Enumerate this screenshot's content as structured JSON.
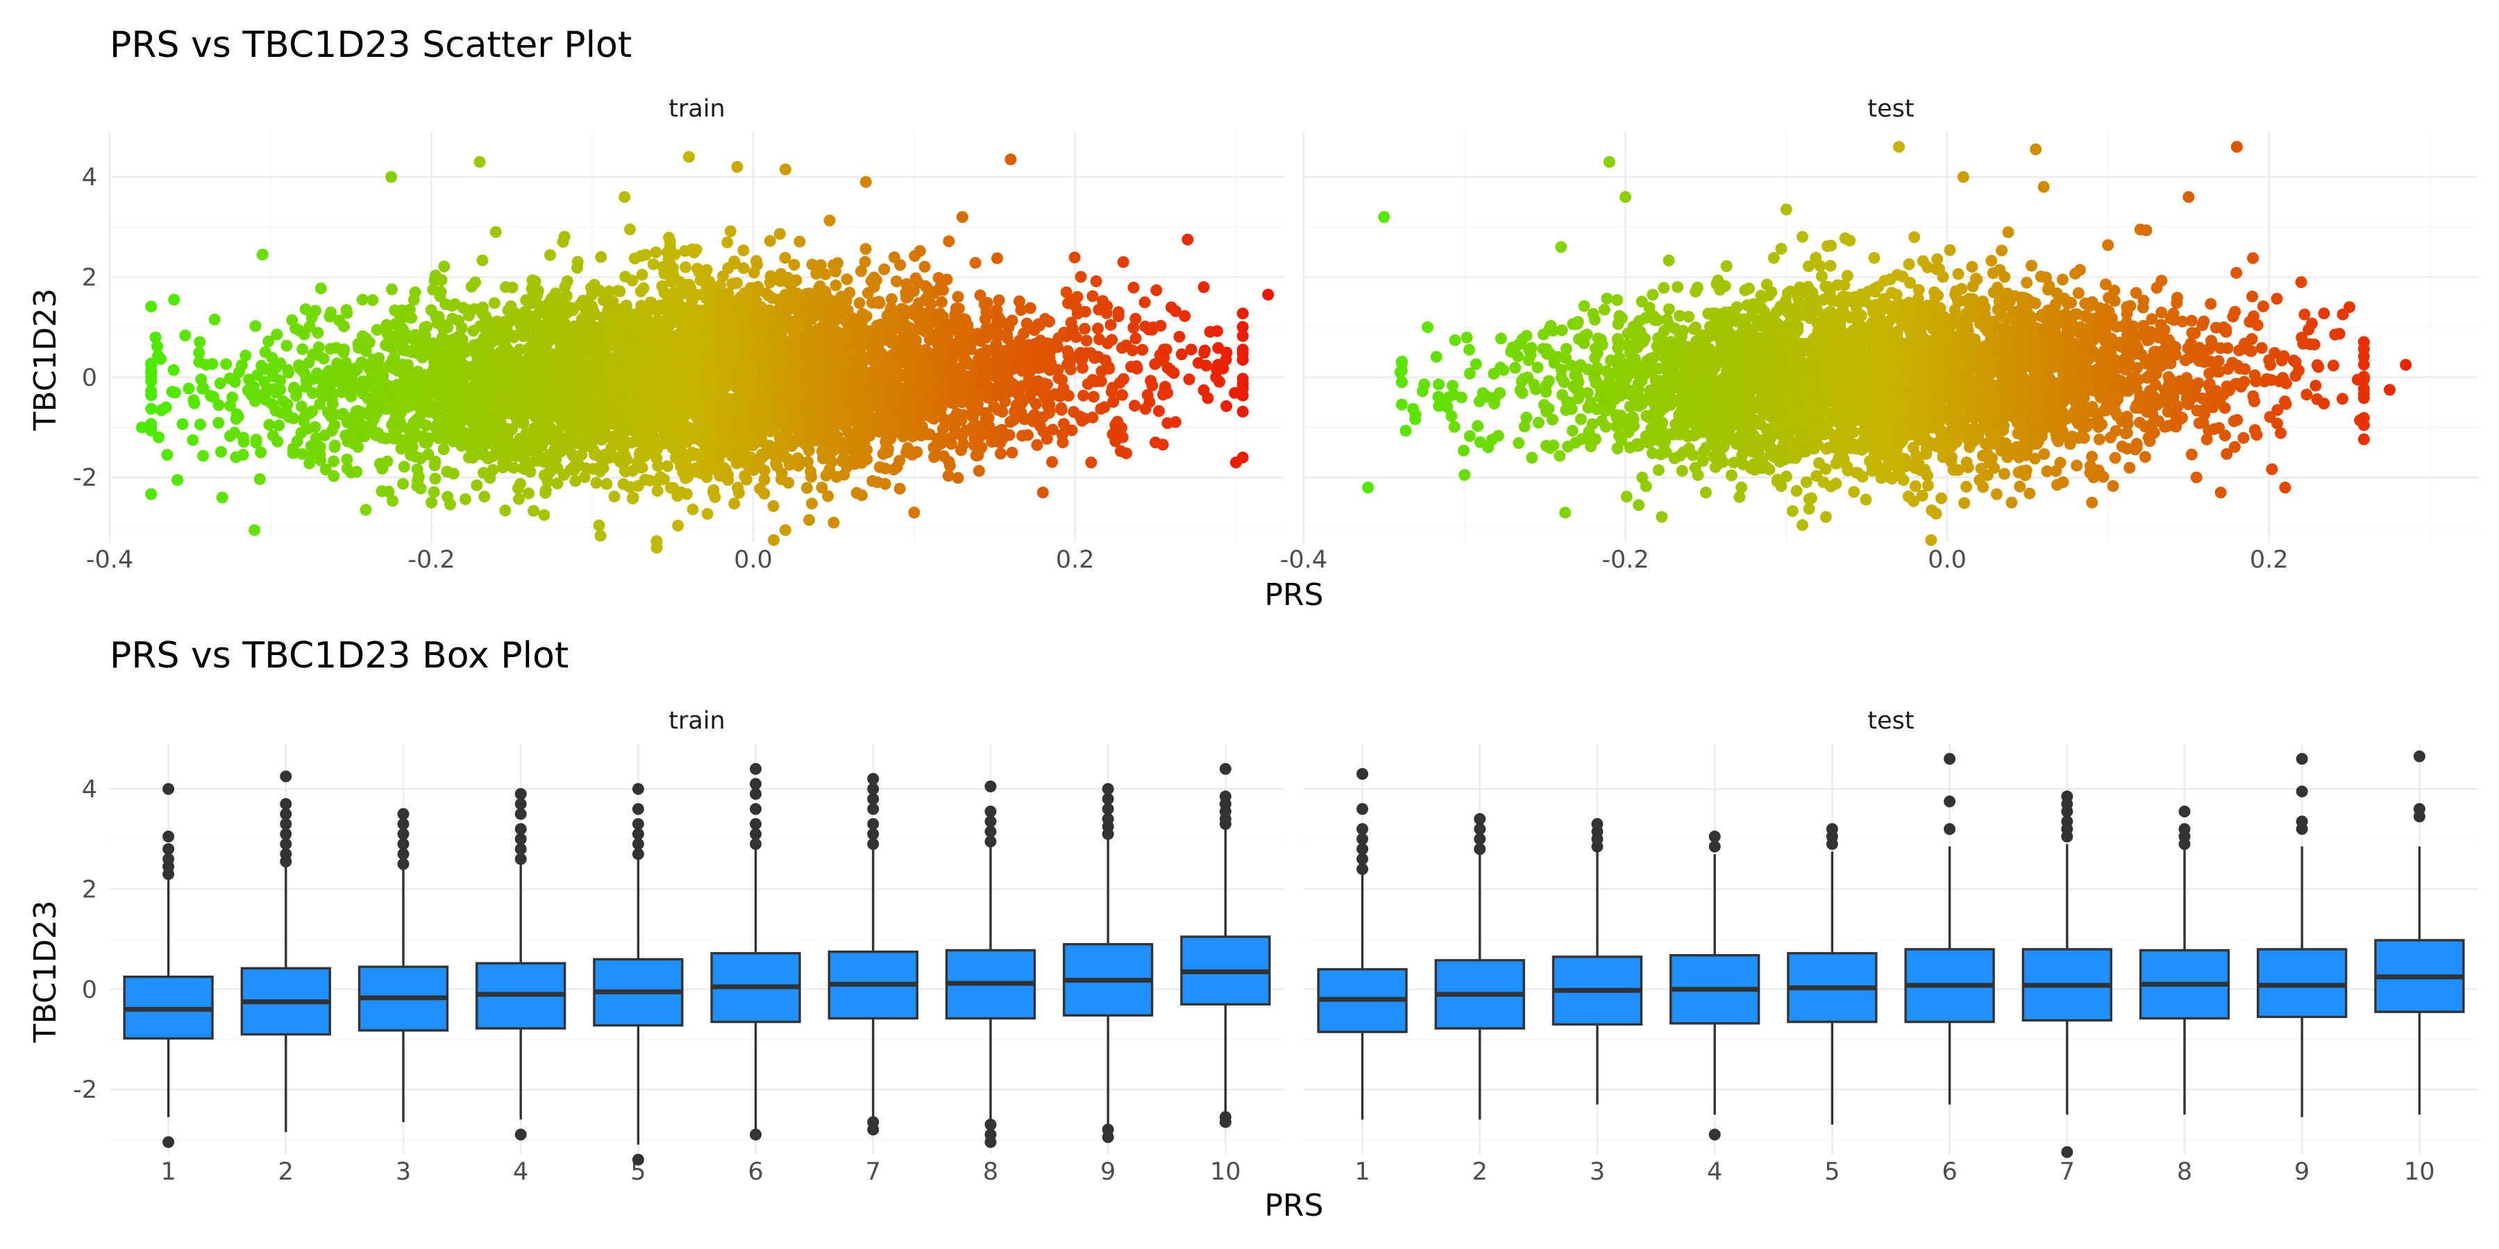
{
  "chart_data": [
    {
      "type": "scatter",
      "title": "PRS vs TBC1D23 Scatter Plot",
      "xlabel": "PRS",
      "ylabel": "TBC1D23",
      "xlim": [
        -0.4,
        0.33
      ],
      "ylim": [
        -3.3,
        4.9
      ],
      "x_ticks": [
        "-0.4",
        "-0.2",
        "0.0",
        "0.2"
      ],
      "x_tick_values": [
        -0.4,
        -0.2,
        0.0,
        0.2
      ],
      "y_ticks": [
        "-2",
        "0",
        "2",
        "4"
      ],
      "y_tick_values": [
        -2,
        0,
        2,
        4
      ],
      "color_low": "#44ee00",
      "color_mid": "#c8b400",
      "color_high": "#ee1100",
      "grid": true,
      "facets": [
        {
          "label": "train",
          "points": [
            [
              -0.38,
              -1.0
            ],
            [
              -0.36,
              1.55
            ],
            [
              -0.365,
              -0.6
            ],
            [
              -0.34,
              0.25
            ],
            [
              -0.33,
              -2.4
            ],
            [
              -0.31,
              -3.05
            ],
            [
              -0.305,
              2.45
            ],
            [
              -0.27,
              0.6
            ],
            [
              -0.25,
              -1.9
            ],
            [
              -0.225,
              4.0
            ],
            [
              -0.2,
              -2.5
            ],
            [
              -0.17,
              4.3
            ],
            [
              -0.16,
              2.9
            ],
            [
              -0.13,
              -2.75
            ],
            [
              -0.08,
              3.6
            ],
            [
              -0.06,
              -3.4
            ],
            [
              -0.04,
              4.4
            ],
            [
              -0.01,
              4.2
            ],
            [
              0.02,
              4.15
            ],
            [
              0.02,
              -3.05
            ],
            [
              0.05,
              -2.9
            ],
            [
              0.07,
              3.9
            ],
            [
              0.1,
              -2.7
            ],
            [
              0.13,
              3.2
            ],
            [
              0.16,
              4.35
            ],
            [
              0.18,
              -2.3
            ],
            [
              0.21,
              -1.7
            ],
            [
              0.23,
              2.3
            ],
            [
              0.25,
              -1.3
            ],
            [
              0.27,
              2.75
            ],
            [
              0.28,
              1.8
            ],
            [
              0.3,
              -1.7
            ],
            [
              0.32,
              1.65
            ]
          ],
          "cloud": {
            "x_range": [
              -0.33,
              0.26
            ],
            "center_y": 0.0,
            "spread_y": 1.0
          }
        },
        {
          "label": "test",
          "points": [
            [
              -0.36,
              -2.2
            ],
            [
              -0.35,
              3.2
            ],
            [
              -0.34,
              0.1
            ],
            [
              -0.31,
              -0.4
            ],
            [
              -0.3,
              -1.95
            ],
            [
              -0.24,
              2.6
            ],
            [
              -0.21,
              4.3
            ],
            [
              -0.2,
              3.6
            ],
            [
              -0.15,
              -2.3
            ],
            [
              -0.1,
              3.35
            ],
            [
              -0.09,
              -2.95
            ],
            [
              -0.03,
              4.6
            ],
            [
              -0.01,
              -3.25
            ],
            [
              0.01,
              4.0
            ],
            [
              0.04,
              -2.5
            ],
            [
              0.055,
              4.55
            ],
            [
              0.06,
              3.8
            ],
            [
              0.09,
              -2.5
            ],
            [
              0.12,
              2.95
            ],
            [
              0.15,
              3.6
            ],
            [
              0.18,
              4.6
            ],
            [
              0.17,
              -2.3
            ],
            [
              0.21,
              -2.2
            ],
            [
              0.22,
              1.9
            ],
            [
              0.25,
              1.4
            ],
            [
              0.275,
              -0.25
            ],
            [
              0.285,
              0.25
            ]
          ],
          "cloud": {
            "x_range": [
              -0.3,
              0.22
            ],
            "center_y": 0.0,
            "spread_y": 0.95
          }
        }
      ]
    },
    {
      "type": "box",
      "title": "PRS vs TBC1D23 Box Plot",
      "xlabel": "PRS",
      "ylabel": "TBC1D23",
      "categories": [
        "1",
        "2",
        "3",
        "4",
        "5",
        "6",
        "7",
        "8",
        "9",
        "10"
      ],
      "ylim": [
        -3.3,
        4.9
      ],
      "y_ticks": [
        "-2",
        "0",
        "2",
        "4"
      ],
      "y_tick_values": [
        -2,
        0,
        2,
        4
      ],
      "box_color": "#1e90ff",
      "grid": true,
      "facets": [
        {
          "label": "train",
          "boxes": [
            {
              "q1": -0.98,
              "median": -0.4,
              "q3": 0.25,
              "low": -2.55,
              "high": 2.2,
              "outliers": [
                2.3,
                2.45,
                2.6,
                2.8,
                3.05,
                4.0,
                -3.05
              ]
            },
            {
              "q1": -0.9,
              "median": -0.25,
              "q3": 0.42,
              "low": -2.85,
              "high": 2.45,
              "outliers": [
                2.55,
                2.7,
                2.9,
                3.1,
                3.3,
                3.5,
                3.7,
                4.25
              ]
            },
            {
              "q1": -0.82,
              "median": -0.17,
              "q3": 0.45,
              "low": -2.65,
              "high": 2.4,
              "outliers": [
                2.5,
                2.7,
                2.9,
                3.1,
                3.3,
                3.5
              ]
            },
            {
              "q1": -0.78,
              "median": -0.1,
              "q3": 0.52,
              "low": -2.6,
              "high": 2.5,
              "outliers": [
                2.6,
                2.8,
                3.0,
                3.2,
                3.5,
                3.7,
                3.9,
                -2.9
              ]
            },
            {
              "q1": -0.72,
              "median": -0.05,
              "q3": 0.6,
              "low": -3.1,
              "high": 2.6,
              "outliers": [
                2.7,
                2.9,
                3.1,
                3.3,
                3.6,
                4.0,
                -3.4
              ]
            },
            {
              "q1": -0.65,
              "median": 0.05,
              "q3": 0.72,
              "low": -2.8,
              "high": 2.8,
              "outliers": [
                2.9,
                3.1,
                3.3,
                3.6,
                3.9,
                4.1,
                4.4,
                -2.9
              ]
            },
            {
              "q1": -0.58,
              "median": 0.1,
              "q3": 0.75,
              "low": -2.55,
              "high": 2.8,
              "outliers": [
                2.9,
                3.1,
                3.3,
                3.6,
                3.8,
                4.0,
                4.2,
                -2.65,
                -2.8
              ]
            },
            {
              "q1": -0.58,
              "median": 0.12,
              "q3": 0.78,
              "low": -2.6,
              "high": 2.85,
              "outliers": [
                2.95,
                3.15,
                3.35,
                3.55,
                4.05,
                -2.7,
                -2.9,
                -3.05
              ]
            },
            {
              "q1": -0.52,
              "median": 0.18,
              "q3": 0.9,
              "low": -2.7,
              "high": 3.0,
              "outliers": [
                3.1,
                3.25,
                3.4,
                3.6,
                3.8,
                4.0,
                -2.8,
                -2.95
              ]
            },
            {
              "q1": -0.3,
              "median": 0.35,
              "q3": 1.05,
              "low": -2.5,
              "high": 3.2,
              "outliers": [
                3.3,
                3.4,
                3.55,
                3.7,
                3.85,
                4.4,
                -2.55,
                -2.65
              ]
            }
          ]
        },
        {
          "label": "test",
          "boxes": [
            {
              "q1": -0.85,
              "median": -0.2,
              "q3": 0.4,
              "low": -2.6,
              "high": 2.3,
              "outliers": [
                2.4,
                2.6,
                2.8,
                3.0,
                3.2,
                3.6,
                4.3
              ]
            },
            {
              "q1": -0.78,
              "median": -0.1,
              "q3": 0.58,
              "low": -2.6,
              "high": 2.7,
              "outliers": [
                2.8,
                3.0,
                3.2,
                3.4
              ]
            },
            {
              "q1": -0.7,
              "median": -0.02,
              "q3": 0.65,
              "low": -2.3,
              "high": 2.75,
              "outliers": [
                2.85,
                3.0,
                3.15,
                3.3
              ]
            },
            {
              "q1": -0.68,
              "median": 0.0,
              "q3": 0.68,
              "low": -2.5,
              "high": 2.7,
              "outliers": [
                2.85,
                3.05,
                -2.9
              ]
            },
            {
              "q1": -0.65,
              "median": 0.03,
              "q3": 0.72,
              "low": -2.7,
              "high": 2.75,
              "outliers": [
                2.9,
                3.05,
                3.2
              ]
            },
            {
              "q1": -0.65,
              "median": 0.08,
              "q3": 0.8,
              "low": -2.3,
              "high": 2.85,
              "outliers": [
                3.2,
                3.75,
                4.6
              ]
            },
            {
              "q1": -0.62,
              "median": 0.08,
              "q3": 0.8,
              "low": -2.5,
              "high": 2.9,
              "outliers": [
                3.05,
                3.2,
                3.35,
                3.55,
                3.7,
                3.85,
                -3.25
              ]
            },
            {
              "q1": -0.58,
              "median": 0.1,
              "q3": 0.78,
              "low": -2.5,
              "high": 2.8,
              "outliers": [
                2.9,
                3.05,
                3.2,
                3.55
              ]
            },
            {
              "q1": -0.55,
              "median": 0.08,
              "q3": 0.8,
              "low": -2.55,
              "high": 2.85,
              "outliers": [
                3.2,
                3.35,
                3.95,
                4.6
              ]
            },
            {
              "q1": -0.45,
              "median": 0.25,
              "q3": 0.98,
              "low": -2.5,
              "high": 2.85,
              "outliers": [
                3.45,
                3.6,
                4.65
              ]
            }
          ]
        }
      ]
    }
  ]
}
